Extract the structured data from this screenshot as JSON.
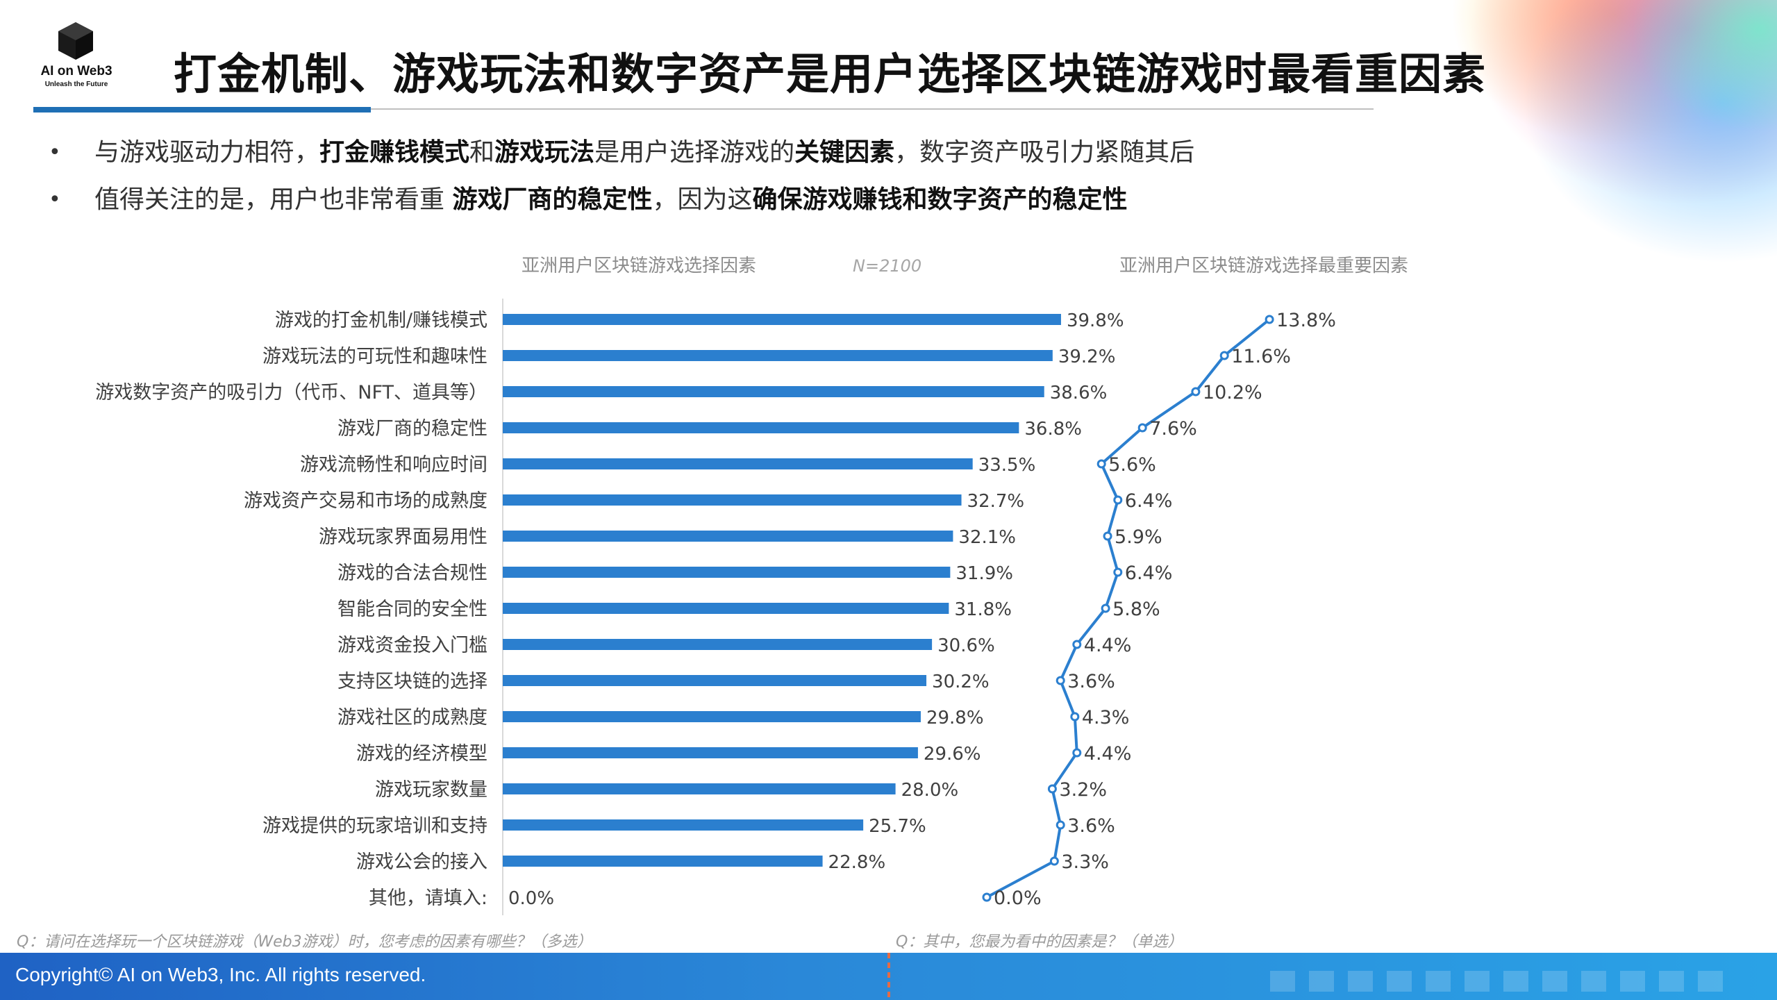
{
  "logo": {
    "title": "AI on Web3",
    "tagline": "Unleash the Future"
  },
  "page_title": "打金机制、游戏玩法和数字资产是用户选择区块链游戏时最看重因素",
  "bullets": {
    "b1": {
      "dot": "•",
      "p1": "与游戏驱动力相符，",
      "s1": "打金赚钱模式",
      "p2": "和",
      "s2": "游戏玩法",
      "p3": "是用户选择游戏的",
      "s3": "关键因素",
      "p4": "，数字资产吸引力紧随其后"
    },
    "b2": {
      "dot": "•",
      "p1": "值得关注的是，用户也非常看重 ",
      "s1": "游戏厂商的稳定性",
      "p2": "，因为这",
      "s2": "确保游戏赚钱和数字资产的稳定性"
    }
  },
  "chart_data": [
    {
      "type": "bar",
      "orientation": "horizontal",
      "title": "亚洲用户区块链游戏选择因素",
      "sample_note": "N=2100",
      "value_suffix": "%",
      "xlim": [
        0,
        45
      ],
      "categories": [
        "游戏的打金机制/赚钱模式",
        "游戏玩法的可玩性和趣味性",
        "游戏数字资产的吸引力（代币、NFT、道具等）",
        "游戏厂商的稳定性",
        "游戏流畅性和响应时间",
        "游戏资产交易和市场的成熟度",
        "游戏玩家界面易用性",
        "游戏的合法合规性",
        "智能合同的安全性",
        "游戏资金投入门槛",
        "支持区块链的选择",
        "游戏社区的成熟度",
        "游戏的经济模型",
        "游戏玩家数量",
        "游戏提供的玩家培训和支持",
        "游戏公会的接入",
        "其他，请填入:"
      ],
      "values": [
        39.8,
        39.2,
        38.6,
        36.8,
        33.5,
        32.7,
        32.1,
        31.9,
        31.8,
        30.6,
        30.2,
        29.8,
        29.6,
        28.0,
        25.7,
        22.8,
        0.0
      ],
      "bar_color": "#2b7fcf",
      "question": "Q：请问在选择玩一个区块链游戏（Web3游戏）时，您考虑的因素有哪些？（多选）"
    },
    {
      "type": "line",
      "orientation": "vertical-category",
      "title": "亚洲用户区块链游戏选择最重要因素",
      "value_suffix": "%",
      "xlim": [
        0,
        16
      ],
      "values": [
        13.8,
        11.6,
        10.2,
        7.6,
        5.6,
        6.4,
        5.9,
        6.4,
        5.8,
        4.4,
        3.6,
        4.3,
        4.4,
        3.2,
        3.6,
        3.3,
        0.0
      ],
      "line_color": "#2b7fcf",
      "question": "Q：其中，您最为看中的因素是？（单选）"
    }
  ],
  "footer": {
    "copyright": "Copyright© AI on Web3, Inc. All rights reserved."
  },
  "colors": {
    "accent": "#1f6fb5",
    "footer_start": "#1f62c4",
    "footer_end": "#2aa2e6"
  }
}
